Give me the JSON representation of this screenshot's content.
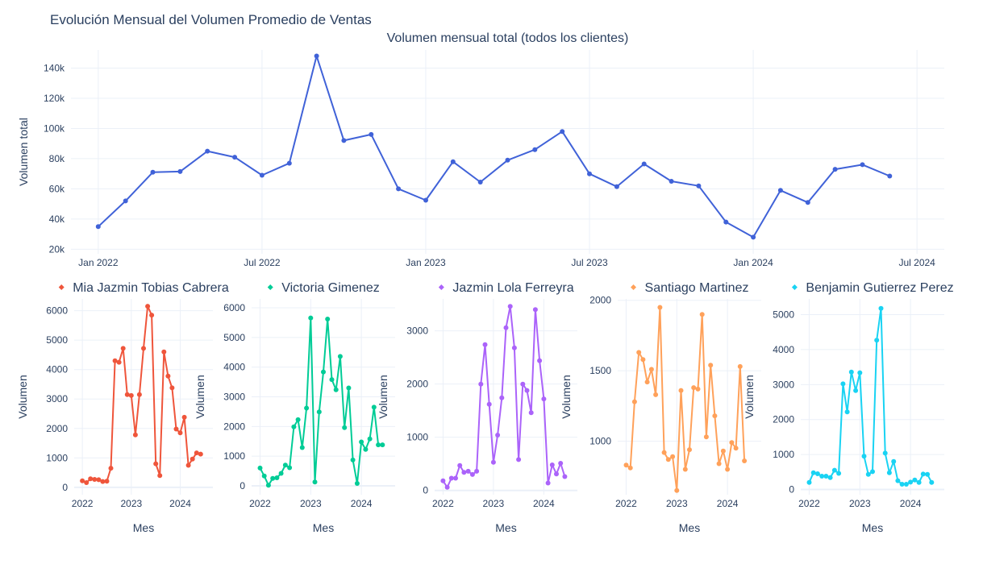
{
  "title": "Evolución Mensual del Volumen Promedio de Ventas",
  "chart_data": [
    {
      "type": "line",
      "title": "Volumen mensual total (todos los clientes)",
      "xlabel": "",
      "ylabel": "Volumen total",
      "color": "#4062d8",
      "x_tick_labels": [
        "Jan 2022",
        "Jul 2022",
        "Jan 2023",
        "Jul 2023",
        "Jan 2024",
        "Jul 2024"
      ],
      "x_tick_months": [
        0,
        6,
        12,
        18,
        24,
        30
      ],
      "y_tick_labels": [
        "20k",
        "40k",
        "60k",
        "80k",
        "100k",
        "120k",
        "140k"
      ],
      "y_tick_values": [
        20000,
        40000,
        60000,
        80000,
        100000,
        120000,
        140000
      ],
      "ylim": [
        17000,
        152000
      ],
      "xlim_months": [
        -1,
        31
      ],
      "x": [
        "2022-01",
        "2022-02",
        "2022-03",
        "2022-04",
        "2022-05",
        "2022-06",
        "2022-07",
        "2022-08",
        "2022-09",
        "2022-10",
        "2022-11",
        "2022-12",
        "2023-01",
        "2023-02",
        "2023-03",
        "2023-04",
        "2023-05",
        "2023-06",
        "2023-07",
        "2023-08",
        "2023-09",
        "2023-10",
        "2023-11",
        "2023-12",
        "2024-01",
        "2024-02",
        "2024-03",
        "2024-04",
        "2024-05",
        "2024-06"
      ],
      "values": [
        35000,
        52000,
        71000,
        71500,
        85000,
        81000,
        69000,
        77000,
        148000,
        92000,
        96000,
        60000,
        52500,
        78000,
        64500,
        79000,
        86000,
        98000,
        70000,
        61500,
        76500,
        65000,
        62000,
        38000,
        28000,
        59000,
        51000,
        73000,
        76000,
        68500
      ]
    },
    {
      "type": "line",
      "name": "Mia Jazmin Tobias Cabrera",
      "xlabel": "Mes",
      "ylabel": "Volumen",
      "color": "#ef553b",
      "x_tick_labels": [
        "2022",
        "2023",
        "2024"
      ],
      "x_tick_months": [
        0,
        12,
        24
      ],
      "y_tick_labels": [
        "0",
        "1000",
        "2000",
        "3000",
        "4000",
        "5000",
        "6000"
      ],
      "y_tick_values": [
        0,
        1000,
        2000,
        3000,
        4000,
        5000,
        6000
      ],
      "ylim": [
        -250,
        6400
      ],
      "xlim_months": [
        -2,
        32
      ],
      "x": [
        "2022-01",
        "2022-02",
        "2022-03",
        "2022-04",
        "2022-05",
        "2022-06",
        "2022-07",
        "2022-08",
        "2022-09",
        "2022-10",
        "2022-11",
        "2022-12",
        "2023-01",
        "2023-02",
        "2023-03",
        "2023-04",
        "2023-05",
        "2023-06",
        "2023-07",
        "2023-08",
        "2023-09",
        "2023-10",
        "2023-11",
        "2023-12",
        "2024-01",
        "2024-02",
        "2024-03",
        "2024-04",
        "2024-05",
        "2024-06"
      ],
      "values": [
        220,
        160,
        290,
        270,
        260,
        200,
        210,
        650,
        4300,
        4250,
        4720,
        3150,
        3120,
        1780,
        3150,
        4720,
        6150,
        5850,
        800,
        400,
        4600,
        3780,
        3380,
        1980,
        1850,
        2380,
        750,
        960,
        1170,
        1130
      ]
    },
    {
      "type": "line",
      "name": "Victoria Gimenez",
      "xlabel": "Mes",
      "ylabel": "Volumen",
      "color": "#00cc96",
      "x_tick_labels": [
        "2022",
        "2023",
        "2024"
      ],
      "x_tick_months": [
        0,
        12,
        24
      ],
      "y_tick_labels": [
        "0",
        "1000",
        "2000",
        "3000",
        "4000",
        "5000",
        "6000"
      ],
      "y_tick_values": [
        0,
        1000,
        2000,
        3000,
        4000,
        5000,
        6000
      ],
      "ylim": [
        -300,
        6300
      ],
      "xlim_months": [
        -2,
        32
      ],
      "x": [
        "2022-01",
        "2022-02",
        "2022-03",
        "2022-04",
        "2022-05",
        "2022-06",
        "2022-07",
        "2022-08",
        "2022-09",
        "2022-10",
        "2022-11",
        "2022-12",
        "2023-01",
        "2023-02",
        "2023-03",
        "2023-04",
        "2023-05",
        "2023-06",
        "2023-07",
        "2023-08",
        "2023-09",
        "2023-10",
        "2023-11",
        "2023-12",
        "2024-01",
        "2024-02",
        "2024-03",
        "2024-04",
        "2024-05",
        "2024-06"
      ],
      "values": [
        600,
        330,
        20,
        250,
        270,
        420,
        700,
        610,
        1990,
        2230,
        1290,
        2620,
        5660,
        130,
        2490,
        3840,
        5620,
        3580,
        3240,
        4360,
        1960,
        3300,
        870,
        80,
        1480,
        1230,
        1580,
        2650,
        1380,
        1380
      ]
    },
    {
      "type": "line",
      "name": "Jazmin Lola Ferreyra",
      "xlabel": "Mes",
      "ylabel": "Volumen",
      "color": "#ab63fa",
      "x_tick_labels": [
        "2022",
        "2023",
        "2024"
      ],
      "x_tick_months": [
        0,
        12,
        24
      ],
      "y_tick_labels": [
        "0",
        "1000",
        "2000",
        "3000"
      ],
      "y_tick_values": [
        0,
        1000,
        2000,
        3000
      ],
      "ylim": [
        -80,
        3600
      ],
      "xlim_months": [
        -2,
        32
      ],
      "x": [
        "2022-01",
        "2022-02",
        "2022-03",
        "2022-04",
        "2022-05",
        "2022-06",
        "2022-07",
        "2022-08",
        "2022-09",
        "2022-10",
        "2022-11",
        "2022-12",
        "2023-01",
        "2023-02",
        "2023-03",
        "2023-04",
        "2023-05",
        "2023-06",
        "2023-07",
        "2023-08",
        "2023-09",
        "2023-10",
        "2023-11",
        "2023-12",
        "2024-01",
        "2024-02",
        "2024-03",
        "2024-04",
        "2024-05",
        "2024-06"
      ],
      "values": [
        180,
        60,
        230,
        230,
        470,
        340,
        360,
        300,
        360,
        2000,
        2740,
        1620,
        530,
        1040,
        1740,
        3060,
        3460,
        2680,
        580,
        2000,
        1880,
        1460,
        3400,
        2440,
        1720,
        140,
        480,
        310,
        510,
        260
      ]
    },
    {
      "type": "line",
      "name": "Santiago Martinez",
      "xlabel": "Mes",
      "ylabel": "Volumen",
      "color": "#ffa15a",
      "x_tick_labels": [
        "2022",
        "2023",
        "2024"
      ],
      "x_tick_months": [
        0,
        12,
        24
      ],
      "y_tick_labels": [
        "1000",
        "1500",
        "2000"
      ],
      "y_tick_values": [
        1000,
        1500,
        2000
      ],
      "ylim": [
        620,
        2010
      ],
      "xlim_months": [
        -2,
        32
      ],
      "x": [
        "2022-01",
        "2022-02",
        "2022-03",
        "2022-04",
        "2022-05",
        "2022-06",
        "2022-07",
        "2022-08",
        "2022-09",
        "2022-10",
        "2022-11",
        "2022-12",
        "2023-01",
        "2023-02",
        "2023-03",
        "2023-04",
        "2023-05",
        "2023-06",
        "2023-07",
        "2023-08",
        "2023-09",
        "2023-10",
        "2023-11",
        "2023-12",
        "2024-01",
        "2024-02",
        "2024-03",
        "2024-04",
        "2024-05"
      ],
      "values": [
        830,
        810,
        1280,
        1630,
        1580,
        1420,
        1510,
        1330,
        1950,
        920,
        870,
        890,
        650,
        1360,
        800,
        940,
        1380,
        1370,
        1900,
        1030,
        1540,
        1180,
        840,
        930,
        800,
        990,
        950,
        1530,
        860
      ]
    },
    {
      "type": "line",
      "name": "Benjamin Gutierrez Perez",
      "xlabel": "Mes",
      "ylabel": "Volumen",
      "color": "#19d3f3",
      "x_tick_labels": [
        "2022",
        "2023",
        "2024"
      ],
      "x_tick_months": [
        0,
        12,
        24
      ],
      "y_tick_labels": [
        "0",
        "1000",
        "2000",
        "3000",
        "4000",
        "5000"
      ],
      "y_tick_values": [
        0,
        1000,
        2000,
        3000,
        4000,
        5000
      ],
      "ylim": [
        -150,
        5450
      ],
      "xlim_months": [
        -2,
        32
      ],
      "x": [
        "2022-01",
        "2022-02",
        "2022-03",
        "2022-04",
        "2022-05",
        "2022-06",
        "2022-07",
        "2022-08",
        "2022-09",
        "2022-10",
        "2022-11",
        "2022-12",
        "2023-01",
        "2023-02",
        "2023-03",
        "2023-04",
        "2023-05",
        "2023-06",
        "2023-07",
        "2023-08",
        "2023-09",
        "2023-10",
        "2023-11",
        "2023-12",
        "2024-01",
        "2024-02",
        "2024-03",
        "2024-04",
        "2024-05",
        "2024-06"
      ],
      "values": [
        200,
        480,
        450,
        380,
        380,
        340,
        550,
        460,
        3020,
        2220,
        3360,
        2830,
        3340,
        950,
        430,
        510,
        4270,
        5180,
        1040,
        480,
        800,
        250,
        150,
        150,
        210,
        270,
        200,
        440,
        430,
        200
      ]
    }
  ]
}
